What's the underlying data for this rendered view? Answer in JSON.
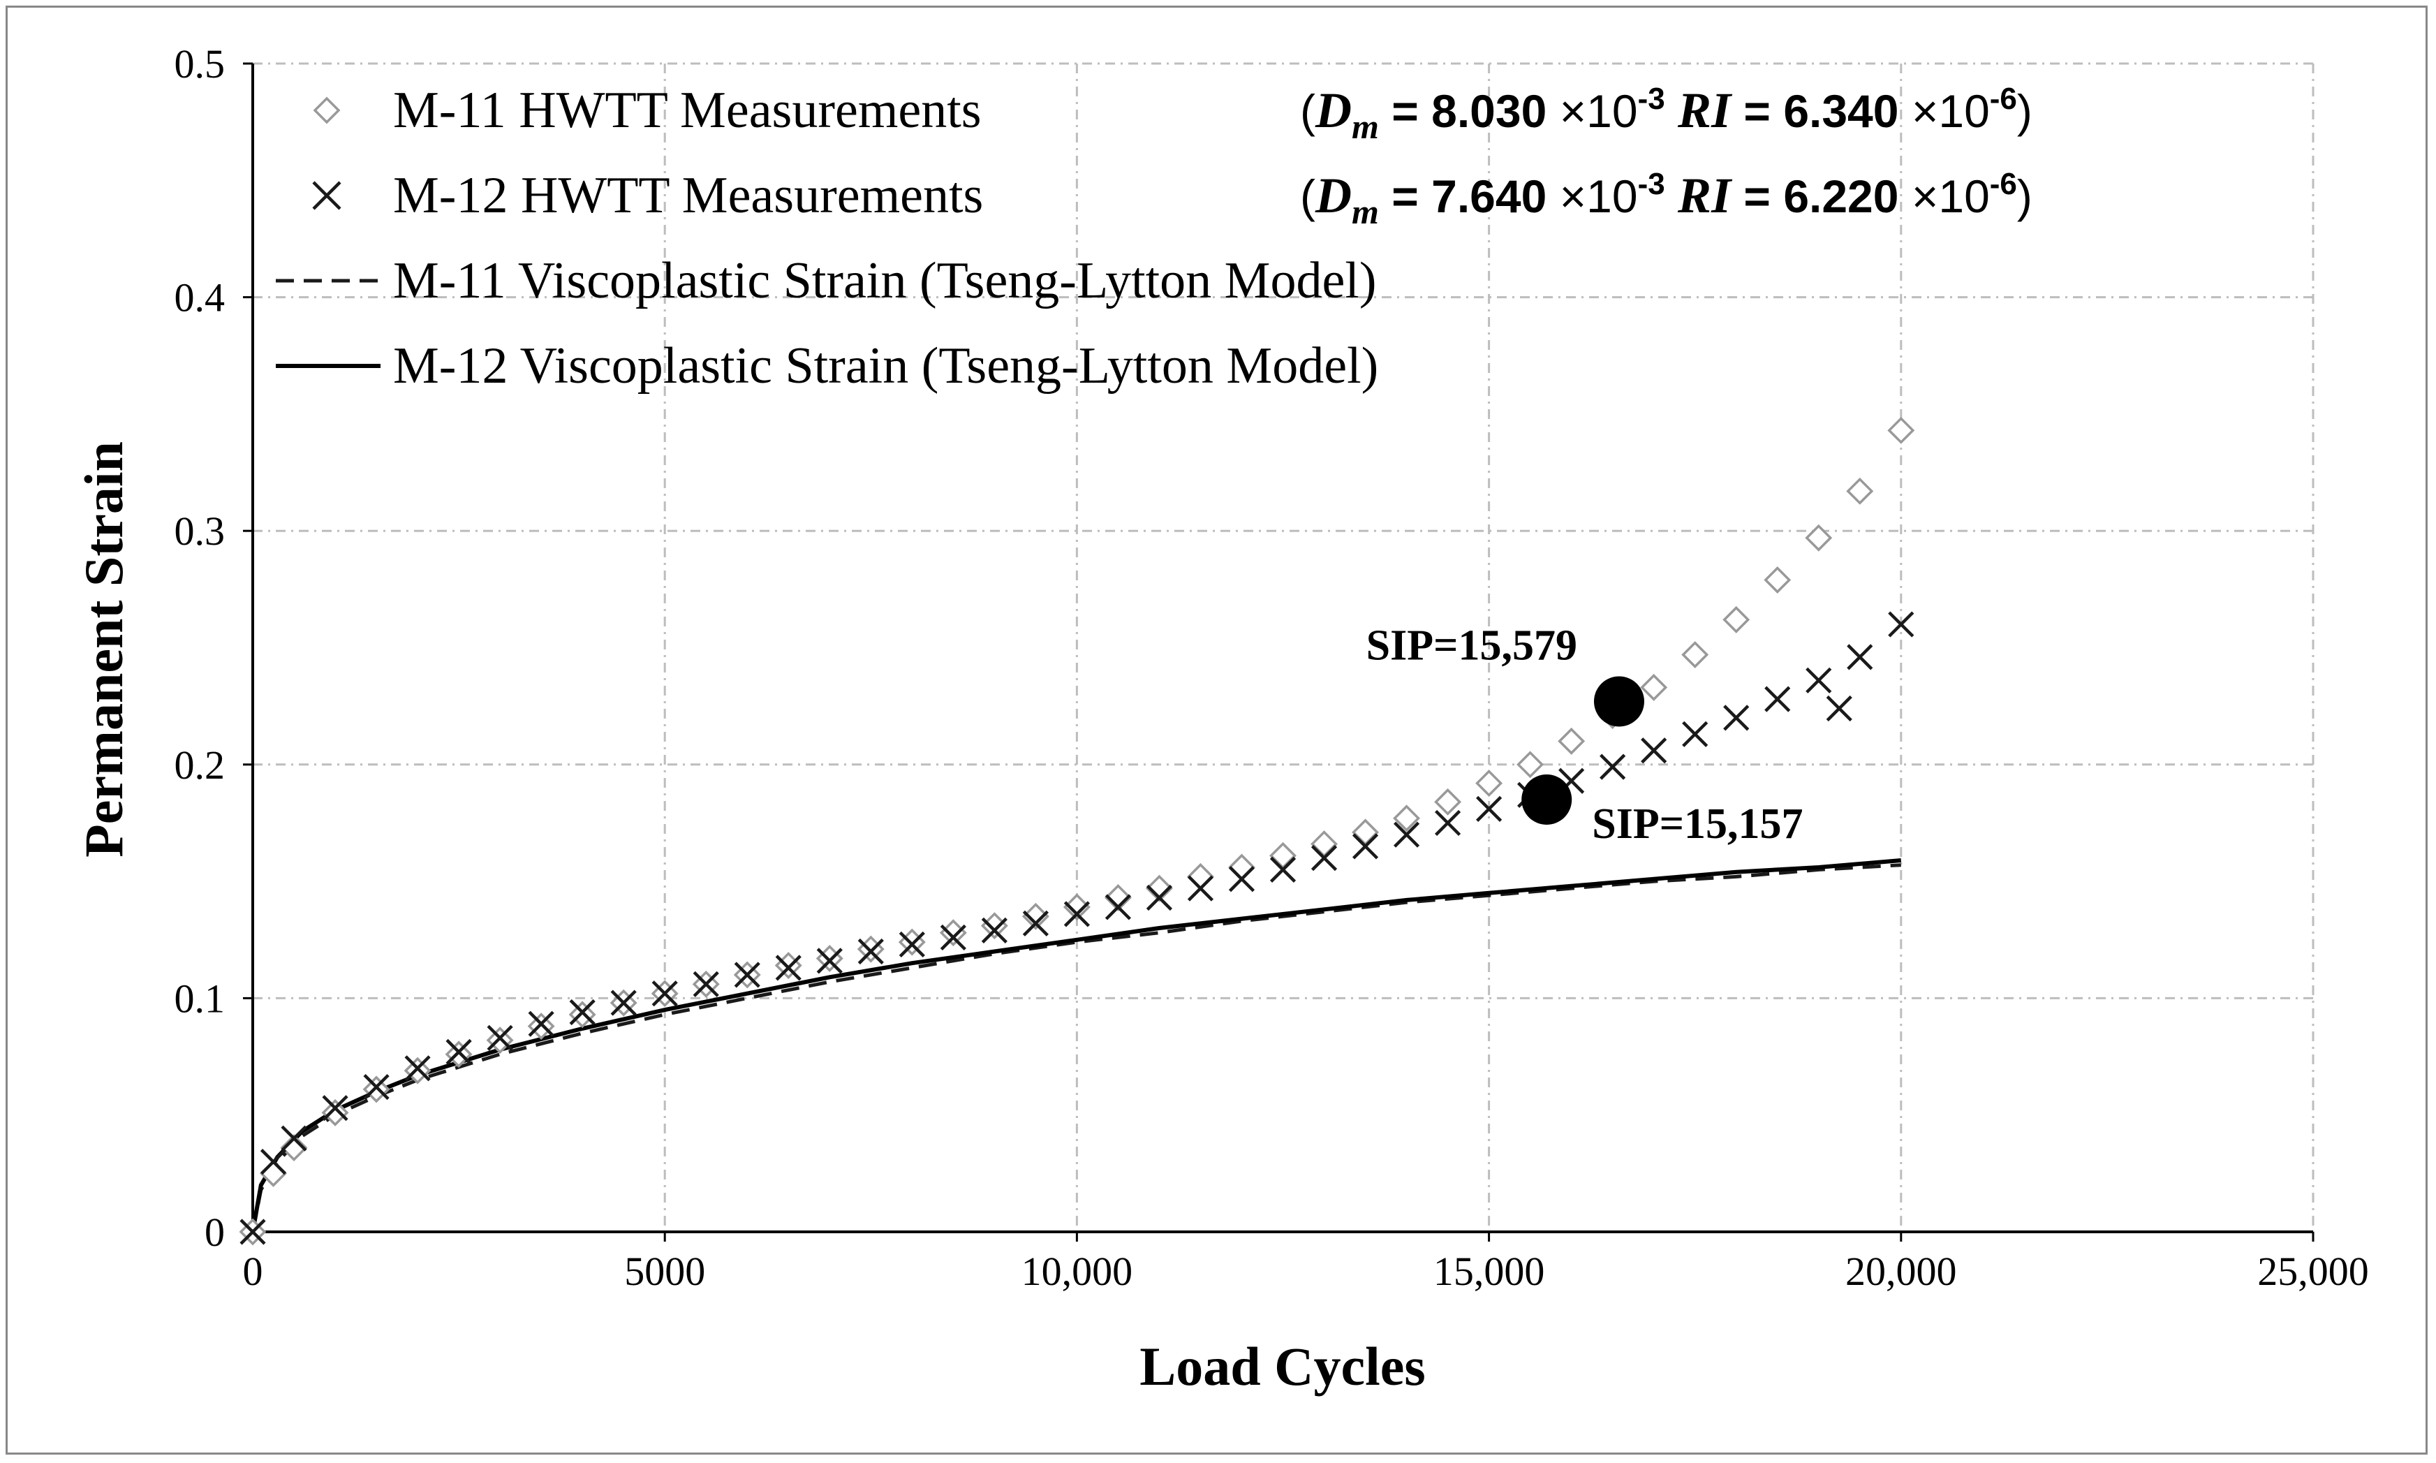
{
  "chart_data": {
    "type": "scatter",
    "title": "",
    "xlabel": "Load Cycles",
    "ylabel": "Permanent Strain",
    "xlim": [
      0,
      25000
    ],
    "ylim": [
      0,
      0.5
    ],
    "x_ticks": [
      "0",
      "5000",
      "10,000",
      "15,000",
      "20,000",
      "25,000"
    ],
    "y_ticks": [
      "0",
      "0.1",
      "0.2",
      "0.3",
      "0.4",
      "0.5"
    ],
    "grid": "dashed",
    "legend_position": "top-left",
    "series": [
      {
        "name": "M-11 HWTT Measurements",
        "marker": "diamond-open",
        "color": "#999999",
        "x": [
          0,
          250,
          500,
          1000,
          1500,
          2000,
          2500,
          3000,
          3500,
          4000,
          4500,
          5000,
          5500,
          6000,
          6500,
          7000,
          7500,
          8000,
          8500,
          9000,
          9500,
          10000,
          10500,
          11000,
          11500,
          12000,
          12500,
          13000,
          13500,
          14000,
          14500,
          15000,
          15500,
          16000,
          16500,
          17000,
          17500,
          18000,
          18500,
          19000,
          19500,
          20000
        ],
        "y": [
          0,
          0.025,
          0.036,
          0.051,
          0.061,
          0.069,
          0.076,
          0.082,
          0.088,
          0.093,
          0.098,
          0.102,
          0.106,
          0.11,
          0.114,
          0.117,
          0.121,
          0.124,
          0.128,
          0.131,
          0.135,
          0.139,
          0.143,
          0.147,
          0.152,
          0.156,
          0.161,
          0.166,
          0.171,
          0.177,
          0.184,
          0.192,
          0.2,
          0.21,
          0.221,
          0.233,
          0.247,
          0.262,
          0.279,
          0.297,
          0.317,
          0.343
        ]
      },
      {
        "name": "M-12 HWTT Measurements",
        "marker": "x",
        "color": "#1a1a1a",
        "x": [
          0,
          250,
          500,
          1000,
          1500,
          2000,
          2500,
          3000,
          3500,
          4000,
          4500,
          5000,
          5500,
          6000,
          6500,
          7000,
          7500,
          8000,
          8500,
          9000,
          9500,
          10000,
          10500,
          11000,
          11500,
          12000,
          12500,
          13000,
          13500,
          14000,
          14500,
          15000,
          15500,
          16000,
          16500,
          17000,
          17500,
          18000,
          18500,
          19000,
          19250,
          19500,
          20000
        ],
        "y": [
          0,
          0.03,
          0.04,
          0.053,
          0.062,
          0.07,
          0.077,
          0.083,
          0.089,
          0.094,
          0.098,
          0.102,
          0.106,
          0.11,
          0.113,
          0.116,
          0.12,
          0.123,
          0.126,
          0.129,
          0.132,
          0.136,
          0.139,
          0.143,
          0.147,
          0.151,
          0.155,
          0.16,
          0.165,
          0.17,
          0.175,
          0.181,
          0.187,
          0.193,
          0.199,
          0.206,
          0.213,
          0.22,
          0.228,
          0.236,
          0.224,
          0.246,
          0.26
        ]
      },
      {
        "name": "M-11 Viscoplastic Strain (Tseng-Lytton Model)",
        "line": "dashed",
        "color": "#1a1a1a",
        "x": [
          0,
          100,
          300,
          600,
          1000,
          1500,
          2000,
          3000,
          4000,
          5000,
          6000,
          7000,
          8000,
          9000,
          10000,
          11000,
          12000,
          13000,
          14000,
          15000,
          16000,
          17000,
          18000,
          19000,
          20000
        ],
        "y": [
          0,
          0.018,
          0.03,
          0.041,
          0.05,
          0.058,
          0.065,
          0.076,
          0.085,
          0.093,
          0.1,
          0.107,
          0.113,
          0.119,
          0.124,
          0.128,
          0.133,
          0.137,
          0.141,
          0.144,
          0.147,
          0.15,
          0.152,
          0.155,
          0.157
        ]
      },
      {
        "name": "M-12 Viscoplastic Strain (Tseng-Lytton Model)",
        "line": "solid",
        "color": "#000000",
        "x": [
          0,
          100,
          300,
          600,
          1000,
          1500,
          2000,
          3000,
          4000,
          5000,
          6000,
          7000,
          8000,
          9000,
          10000,
          11000,
          12000,
          13000,
          14000,
          15000,
          16000,
          17000,
          18000,
          19000,
          20000
        ],
        "y": [
          0,
          0.02,
          0.032,
          0.043,
          0.052,
          0.06,
          0.067,
          0.078,
          0.087,
          0.095,
          0.102,
          0.109,
          0.115,
          0.12,
          0.125,
          0.13,
          0.134,
          0.138,
          0.142,
          0.145,
          0.148,
          0.151,
          0.154,
          0.156,
          0.159
        ]
      }
    ],
    "sip_points": [
      {
        "label": "SIP=15,579",
        "x": 16579,
        "y": 0.227
      },
      {
        "label": "SIP=15,157",
        "x": 15700,
        "y": 0.185
      }
    ],
    "legend_params": [
      {
        "open": "(",
        "d_sym": "D",
        "d_sub": "m",
        "eq": " = ",
        "d_val": "8.030",
        "times": " ×10",
        "d_exp": "-3",
        "ri_sym": "RI",
        "ri_val": "6.340",
        "ri_exp": "-6",
        "close": ")"
      },
      {
        "open": "(",
        "d_sym": "D",
        "d_sub": "m",
        "eq": " = ",
        "d_val": "7.640",
        "times": " ×10",
        "d_exp": "-3",
        "ri_sym": "RI",
        "ri_val": "6.220",
        "ri_exp": "-6",
        "close": ")"
      }
    ]
  }
}
